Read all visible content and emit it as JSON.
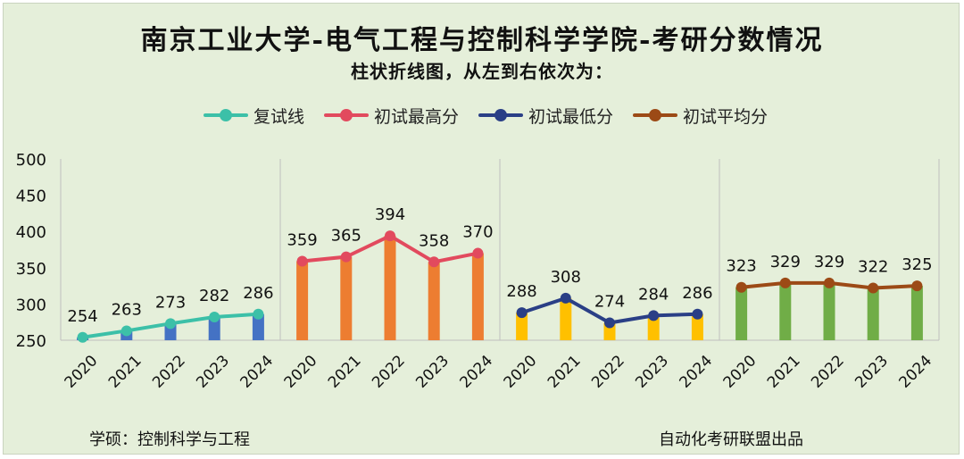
{
  "title": "南京工业大学-电气工程与控制科学学院-考研分数情况",
  "subtitle": "柱状折线图，从左到右依次为：",
  "footer": {
    "left": "学硕：控制科学与工程",
    "right": "自动化考研联盟出品"
  },
  "chart_data": {
    "type": "bar",
    "title": "南京工业大学-电气工程与控制科学学院-考研分数情况",
    "ylim": [
      250,
      500
    ],
    "yticks": [
      250,
      300,
      350,
      400,
      450,
      500
    ],
    "categories": [
      "2020",
      "2021",
      "2022",
      "2023",
      "2024"
    ],
    "series": [
      {
        "name": "复试线",
        "bar_color": "#4472c4",
        "line_color": "#3cc0a8",
        "values": [
          254,
          263,
          273,
          282,
          286
        ]
      },
      {
        "name": "初试最高分",
        "bar_color": "#ed7d31",
        "line_color": "#e24a5e",
        "values": [
          359,
          365,
          394,
          358,
          370
        ]
      },
      {
        "name": "初试最低分",
        "bar_color": "#ffc000",
        "line_color": "#2a3f86",
        "values": [
          288,
          308,
          274,
          284,
          286
        ]
      },
      {
        "name": "初试平均分",
        "bar_color": "#70ad47",
        "line_color": "#9c4a16",
        "values": [
          323,
          329,
          329,
          322,
          325
        ]
      }
    ]
  }
}
